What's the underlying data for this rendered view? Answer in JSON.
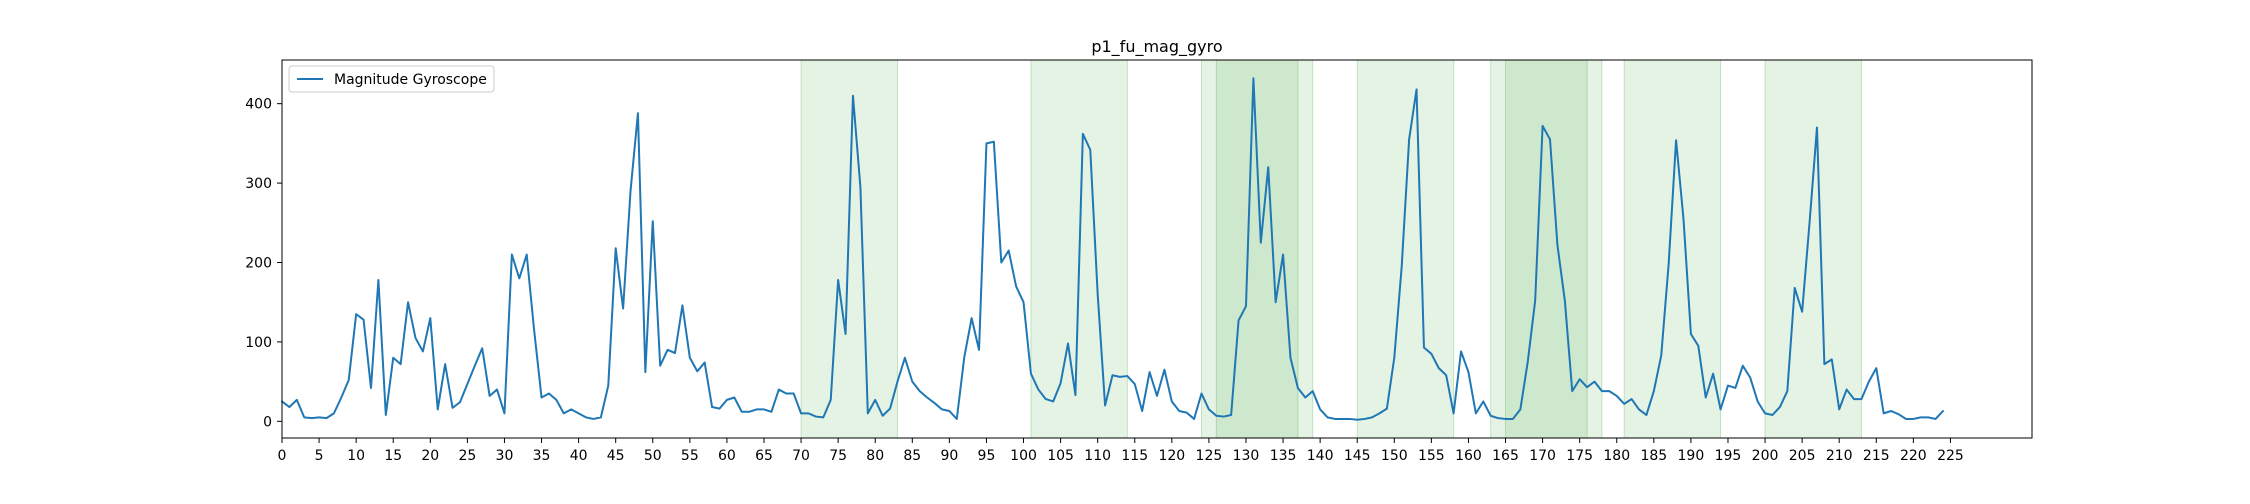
{
  "chart_data": {
    "type": "line",
    "title": "p1_fu_mag_gyro",
    "xlabel": "",
    "ylabel": "",
    "xlim": [
      0,
      236
    ],
    "ylim": [
      -21,
      455
    ],
    "x_ticks": [
      0,
      5,
      10,
      15,
      20,
      25,
      30,
      35,
      40,
      45,
      50,
      55,
      60,
      65,
      70,
      75,
      80,
      85,
      90,
      95,
      100,
      105,
      110,
      115,
      120,
      125,
      130,
      135,
      140,
      145,
      150,
      155,
      160,
      165,
      170,
      175,
      180,
      185,
      190,
      195,
      200,
      205,
      210,
      215,
      220,
      225
    ],
    "y_ticks": [
      0,
      100,
      200,
      300,
      400
    ],
    "grid": false,
    "legend": {
      "placement": "top-left"
    },
    "colors": {
      "line": "#1f77b4",
      "band": "#2ca02c",
      "axis": "#000000"
    },
    "shaded_regions": [
      {
        "x0": 70,
        "x1": 83
      },
      {
        "x0": 101,
        "x1": 114
      },
      {
        "x0": 124,
        "x1": 139
      },
      {
        "x0": 126,
        "x1": 137
      },
      {
        "x0": 145,
        "x1": 158
      },
      {
        "x0": 163,
        "x1": 178
      },
      {
        "x0": 165,
        "x1": 176
      },
      {
        "x0": 181,
        "x1": 194
      },
      {
        "x0": 200,
        "x1": 213
      }
    ],
    "series": [
      {
        "name": "Magnitude Gyroscope",
        "x": [
          0,
          1,
          2,
          3,
          4,
          5,
          6,
          7,
          8,
          9,
          10,
          11,
          12,
          13,
          14,
          15,
          16,
          17,
          18,
          19,
          20,
          21,
          22,
          23,
          24,
          25,
          26,
          27,
          28,
          29,
          30,
          31,
          32,
          33,
          34,
          35,
          36,
          37,
          38,
          39,
          40,
          41,
          42,
          43,
          44,
          45,
          46,
          47,
          48,
          49,
          50,
          51,
          52,
          53,
          54,
          55,
          56,
          57,
          58,
          59,
          60,
          61,
          62,
          63,
          64,
          65,
          66,
          67,
          68,
          69,
          70,
          71,
          72,
          73,
          74,
          75,
          76,
          77,
          78,
          79,
          80,
          81,
          82,
          83,
          84,
          85,
          86,
          87,
          88,
          89,
          90,
          91,
          92,
          93,
          94,
          95,
          96,
          97,
          98,
          99,
          100,
          101,
          102,
          103,
          104,
          105,
          106,
          107,
          108,
          109,
          110,
          111,
          112,
          113,
          114,
          115,
          116,
          117,
          118,
          119,
          120,
          121,
          122,
          123,
          124,
          125,
          126,
          127,
          128,
          129,
          130,
          131,
          132,
          133,
          134,
          135,
          136,
          137,
          138,
          139,
          140,
          141,
          142,
          143,
          144,
          145,
          146,
          147,
          148,
          149,
          150,
          151,
          152,
          153,
          154,
          155,
          156,
          157,
          158,
          159,
          160,
          161,
          162,
          163,
          164,
          165,
          166,
          167,
          168,
          169,
          170,
          171,
          172,
          173,
          174,
          175,
          176,
          177,
          178,
          179,
          180,
          181,
          182,
          183,
          184,
          185,
          186,
          187,
          188,
          189,
          190,
          191,
          192,
          193,
          194,
          195,
          196,
          197,
          198,
          199,
          200,
          201,
          202,
          203,
          204,
          205,
          206,
          207,
          208,
          209,
          210,
          211,
          212,
          213,
          214,
          215,
          216,
          217,
          218,
          219,
          220,
          221,
          222,
          223,
          224
        ],
        "y": [
          25,
          18,
          27,
          5,
          4,
          5,
          4,
          10,
          30,
          52,
          135,
          128,
          42,
          178,
          8,
          80,
          72,
          150,
          105,
          88,
          130,
          15,
          72,
          17,
          24,
          47,
          70,
          92,
          32,
          40,
          10,
          210,
          180,
          210,
          115,
          30,
          35,
          27,
          10,
          15,
          10,
          5,
          3,
          5,
          45,
          218,
          142,
          290,
          388,
          62,
          252,
          70,
          90,
          86,
          146,
          80,
          63,
          74,
          18,
          16,
          27,
          30,
          12,
          12,
          15,
          15,
          12,
          40,
          35,
          35,
          10,
          10,
          6,
          5,
          27,
          178,
          110,
          410,
          295,
          10,
          27,
          7,
          16,
          50,
          80,
          50,
          38,
          30,
          23,
          15,
          13,
          3,
          80,
          130,
          90,
          350,
          352,
          200,
          215,
          170,
          150,
          60,
          40,
          28,
          25,
          48,
          98,
          33,
          362,
          342,
          160,
          20,
          58,
          56,
          57,
          47,
          13,
          62,
          32,
          65,
          25,
          13,
          11,
          3,
          35,
          15,
          7,
          6,
          8,
          127,
          145,
          432,
          225,
          320,
          150,
          210,
          80,
          42,
          30,
          38,
          15,
          5,
          3,
          3,
          3,
          2,
          3,
          5,
          10,
          16,
          80,
          195,
          355,
          418,
          93,
          85,
          67,
          58,
          10,
          88,
          62,
          10,
          25,
          7,
          4,
          3,
          3,
          15,
          75,
          152,
          372,
          355,
          222,
          152,
          38,
          53,
          43,
          50,
          38,
          38,
          32,
          22,
          28,
          15,
          8,
          38,
          83,
          198,
          354,
          255,
          110,
          95,
          30,
          60,
          15,
          45,
          42,
          70,
          55,
          25,
          10,
          8,
          18,
          38,
          168,
          138,
          250,
          370,
          72,
          78,
          15,
          40,
          28,
          28,
          50,
          67,
          10,
          13,
          9,
          3,
          3,
          5,
          5,
          3,
          13
        ]
      }
    ]
  }
}
